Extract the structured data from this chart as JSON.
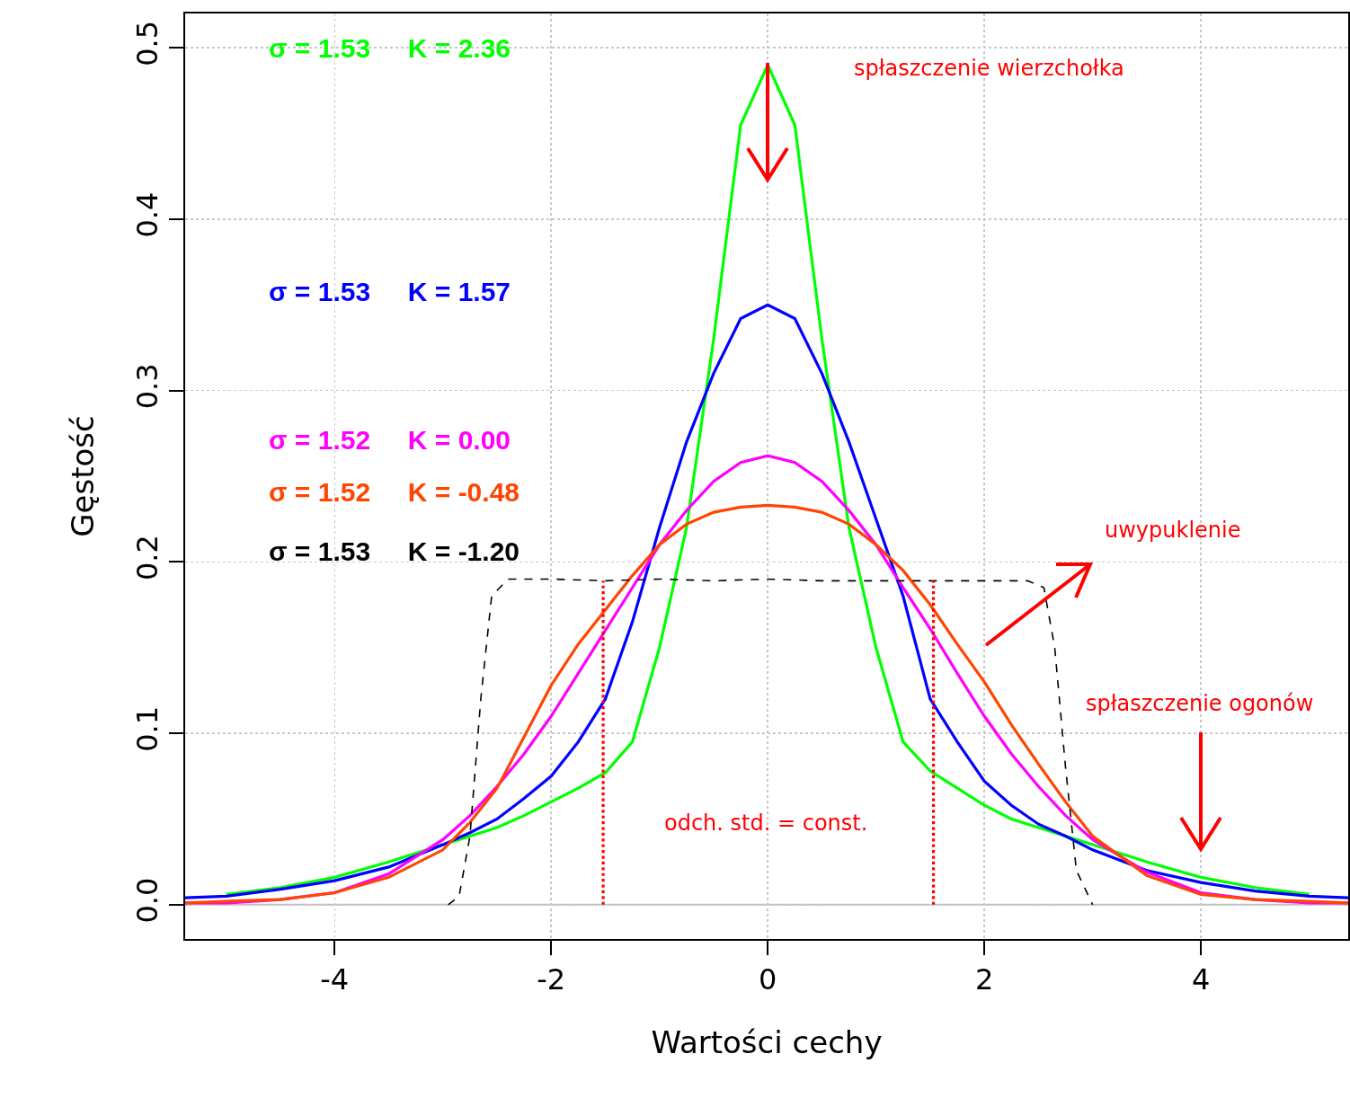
{
  "chart_data": {
    "type": "line",
    "xlabel": "Wartości cechy",
    "ylabel": "Gęstość",
    "x": [
      -5.38,
      -5,
      -4.5,
      -4,
      -3.5,
      -3,
      -2.75,
      -2.5,
      -2.25,
      -2,
      -1.75,
      -1.5,
      -1.25,
      -1,
      -0.75,
      -0.5,
      -0.25,
      0,
      0.25,
      0.5,
      0.75,
      1,
      1.25,
      1.5,
      1.75,
      2,
      2.25,
      2.5,
      2.75,
      3,
      3.5,
      4,
      4.5,
      5,
      5.36
    ],
    "series": [
      {
        "name": "σ = 1.53     K = 2.36",
        "color": "#00ff00",
        "values": [
          null,
          0.006,
          0.01,
          0.016,
          0.025,
          0.035,
          0.04,
          0.045,
          0.052,
          0.06,
          0.068,
          0.077,
          0.095,
          0.15,
          0.22,
          0.33,
          0.455,
          0.49,
          0.455,
          0.33,
          0.22,
          0.15,
          0.095,
          0.078,
          0.068,
          0.058,
          0.05,
          0.045,
          0.04,
          0.035,
          0.025,
          0.016,
          0.01,
          0.006,
          null
        ]
      },
      {
        "name": "σ = 1.53     K = 1.57",
        "color": "#0000ff",
        "values": [
          0.004,
          0.005,
          0.009,
          0.014,
          0.022,
          0.035,
          0.042,
          0.05,
          0.062,
          0.075,
          0.095,
          0.12,
          0.165,
          0.22,
          0.27,
          0.31,
          0.342,
          0.35,
          0.342,
          0.31,
          0.27,
          0.225,
          0.18,
          0.12,
          0.095,
          0.072,
          0.058,
          0.047,
          0.04,
          0.032,
          0.02,
          0.013,
          0.008,
          0.005,
          0.004
        ]
      },
      {
        "name": "σ = 1.52     K = 0.00",
        "color": "#ff00ff",
        "values": [
          0.001,
          0.001,
          0.003,
          0.007,
          0.018,
          0.038,
          0.052,
          0.069,
          0.088,
          0.11,
          0.135,
          0.16,
          0.185,
          0.21,
          0.23,
          0.247,
          0.258,
          0.262,
          0.258,
          0.247,
          0.23,
          0.21,
          0.185,
          0.161,
          0.135,
          0.11,
          0.088,
          0.069,
          0.052,
          0.038,
          0.019,
          0.007,
          0.003,
          0.001,
          0.001
        ]
      },
      {
        "name": "σ = 1.52     K = -0.48",
        "color": "#ff4500",
        "values": [
          0.001,
          0.002,
          0.003,
          0.007,
          0.016,
          0.032,
          0.048,
          0.068,
          0.098,
          0.128,
          0.152,
          0.172,
          0.192,
          0.21,
          0.222,
          0.229,
          0.232,
          0.233,
          0.232,
          0.229,
          0.222,
          0.21,
          0.195,
          0.175,
          0.152,
          0.13,
          0.105,
          0.082,
          0.06,
          0.04,
          0.017,
          0.006,
          0.003,
          0.002,
          0.001
        ]
      },
      {
        "name": "σ = 1.53     K = -1.20",
        "color": "#000000",
        "line_style": "dashed",
        "x": [
          -2.95,
          -2.85,
          -2.75,
          -2.65,
          -2.55,
          -2.4,
          -2,
          -1.5,
          -1,
          -0.5,
          0,
          0.5,
          1,
          1.5,
          2,
          2.4,
          2.55,
          2.65,
          2.75,
          2.85,
          3.0
        ],
        "values": [
          0,
          0.005,
          0.04,
          0.12,
          0.18,
          0.19,
          0.19,
          0.189,
          0.19,
          0.189,
          0.19,
          0.189,
          0.189,
          0.189,
          0.189,
          0.189,
          0.185,
          0.15,
          0.08,
          0.02,
          0
        ]
      },
      {
        "color": "#ff0000",
        "line_style": "dotted",
        "x": [
          -1.52,
          -1.52
        ],
        "values": [
          0,
          0.189
        ]
      },
      {
        "color": "#ff0000",
        "line_style": "dotted",
        "x": [
          1.53,
          1.53
        ],
        "values": [
          0,
          0.189
        ]
      }
    ],
    "annotations": [
      "spłaszczenie wierzchołka",
      "uwypuklenie",
      "spłaszczenie ogonów",
      "odch. std. = const."
    ],
    "ref_lines": [
      {
        "axis": "y",
        "value": 0,
        "color": "#bebebe"
      }
    ],
    "xlim": [
      -5.38,
      5.36
    ],
    "xticks": [
      -4,
      -2,
      0,
      2,
      4
    ],
    "ylim": [
      -0.02,
      0.52
    ],
    "yticks": [
      {
        "value": 0,
        "label": "0.0"
      },
      0.1,
      0.2,
      0.3,
      0.4,
      0.5
    ],
    "grid": true,
    "legend": "top left",
    "marker": "none",
    "line_style": "solid"
  }
}
